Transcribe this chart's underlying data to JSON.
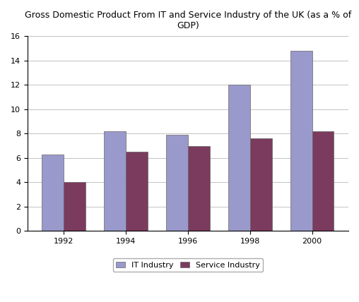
{
  "title": "Gross Domestic Product From IT and Service Industry of the UK (as a % of\nGDP)",
  "years": [
    "1992",
    "1994",
    "1996",
    "1998",
    "2000"
  ],
  "it_industry": [
    6.3,
    8.2,
    7.9,
    12.0,
    14.8
  ],
  "service_industry": [
    4.0,
    6.5,
    7.0,
    7.6,
    8.2
  ],
  "it_color": "#9999CC",
  "service_color": "#7B3B5E",
  "ylim": [
    0,
    16
  ],
  "yticks": [
    0,
    2,
    4,
    6,
    8,
    10,
    12,
    14,
    16
  ],
  "legend_labels": [
    "IT Industry",
    "Service Industry"
  ],
  "bar_width": 0.35,
  "background_color": "#FFFFFF",
  "grid_color": "#AAAAAA",
  "title_fontsize": 9,
  "tick_fontsize": 8,
  "legend_fontsize": 8
}
